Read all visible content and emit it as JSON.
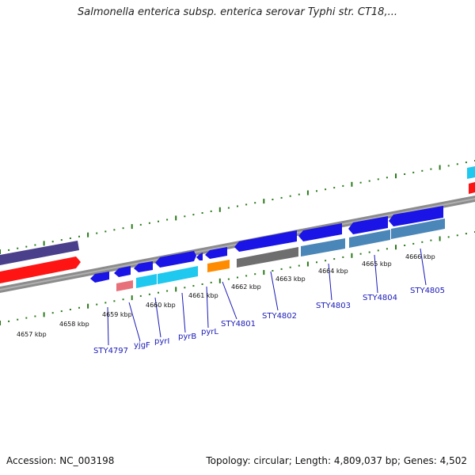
{
  "title": "Salmonella enterica subsp. enterica serovar Typhi str. CT18,...",
  "footer": {
    "accession": "Accession: NC_003198",
    "summary": "Topology: circular; Length: 4,809,037 bp; Genes: 4,502"
  },
  "ruler_labels": [
    "4657 kbp",
    "4658 kbp",
    "4659 kbp",
    "4660 kbp",
    "4661 kbp",
    "4662 kbp",
    "4663 kbp",
    "4664 kbp",
    "4665 kbp",
    "4666 kbp"
  ],
  "gene_labels": [
    "STY4797",
    "yjgF",
    "pyrI",
    "pyrB",
    "pyrL",
    "STY4801",
    "STY4802",
    "STY4803",
    "STY4804",
    "STY4805"
  ],
  "colors": {
    "forward_gene": "#1a14e6",
    "reverse_gene": "#ff1010",
    "purple_feature": "#4a3f8a",
    "cyan_feature": "#1ec8ee",
    "steel_feature": "#4a86b8",
    "gray_feature": "#6e6e6e",
    "orange_feature": "#ff8c00",
    "pink_feature": "#e8707a",
    "tick": "#2a7a1a",
    "backbone": "#888888",
    "label": "#1a1ab8"
  }
}
